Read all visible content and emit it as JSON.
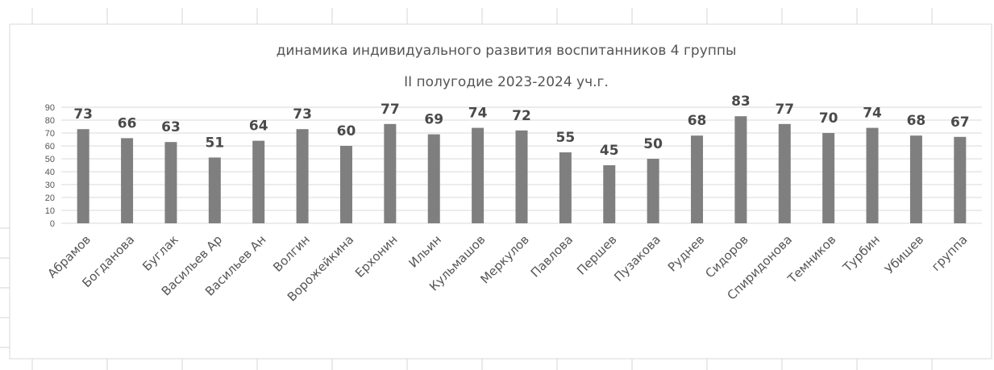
{
  "chart_data": {
    "type": "bar",
    "title": [
      "динамика индивидуального развития воспитанников 4 группы",
      "II полугодие 2023-2024 уч.г."
    ],
    "categories": [
      "Абрамов",
      "Богданова",
      "Буглак",
      "Васильев Ар",
      "Васильев Ан",
      "Волгин",
      "Ворожейкина",
      "Ерхонин",
      "Ильин",
      "Кульмашов",
      "Меркулов",
      "Павлова",
      "Першев",
      "Пузакова",
      "Руднев",
      "Сидоров",
      "Спиридонова",
      "Темников",
      "Турбин",
      "Убишев",
      "группа"
    ],
    "values": [
      73,
      66,
      63,
      51,
      64,
      73,
      60,
      77,
      69,
      74,
      72,
      55,
      45,
      50,
      68,
      83,
      77,
      70,
      74,
      68,
      67
    ],
    "yticks": [
      0,
      10,
      20,
      30,
      40,
      50,
      60,
      70,
      80,
      90
    ],
    "ylim": [
      0,
      90
    ],
    "grid": true,
    "legend": "none",
    "bar_color": "#7f7f7f",
    "grid_color": "#d9d9d9",
    "text_color": "#595959"
  }
}
